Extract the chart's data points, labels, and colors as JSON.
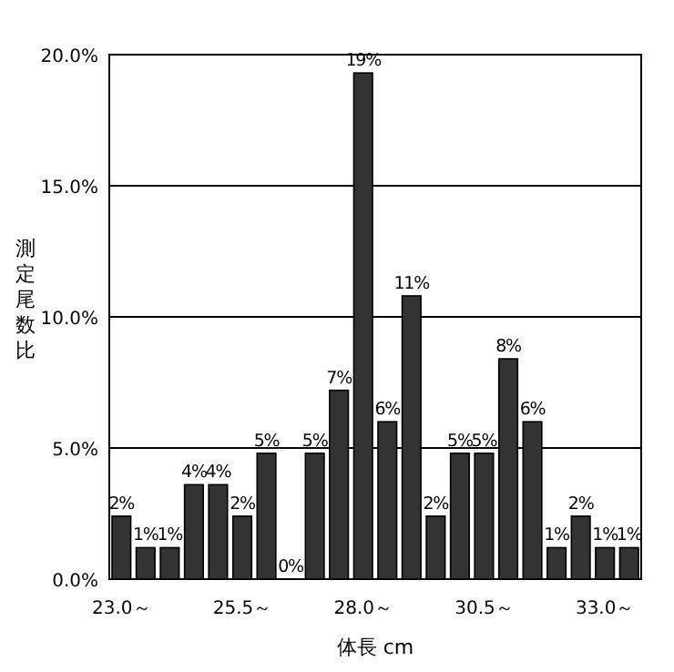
{
  "chart_data": {
    "type": "bar",
    "xlabel": "体長 cm",
    "ylabel": "測定尾数比",
    "categories": [
      "23.0～",
      null,
      null,
      null,
      null,
      "25.5～",
      null,
      null,
      null,
      null,
      "28.0～",
      null,
      null,
      null,
      null,
      "30.5～",
      null,
      null,
      null,
      null,
      "33.0～",
      null
    ],
    "values": [
      2.4,
      1.2,
      1.2,
      3.6,
      3.6,
      2.4,
      4.8,
      0,
      4.8,
      7.2,
      19.3,
      6.0,
      10.8,
      2.4,
      4.8,
      4.8,
      8.4,
      6.0,
      1.2,
      2.4,
      1.2,
      1.2
    ],
    "value_labels": [
      "2%",
      "1%",
      "1%",
      "4%",
      "4%",
      "2%",
      "5%",
      "0%",
      "5%",
      "7%",
      "19%",
      "6%",
      "11%",
      "2%",
      "5%",
      "5%",
      "8%",
      "6%",
      "1%",
      "2%",
      "1%",
      "1%"
    ],
    "color": "#333333",
    "ylim": [
      0,
      20
    ],
    "yticks": [
      {
        "value": 0,
        "label": "0.0%"
      },
      {
        "value": 5,
        "label": "5.0%"
      },
      {
        "value": 10,
        "label": "10.0%"
      },
      {
        "value": 15,
        "label": "15.0%"
      },
      {
        "value": 20,
        "label": "20.0%"
      }
    ],
    "grid": "y"
  }
}
